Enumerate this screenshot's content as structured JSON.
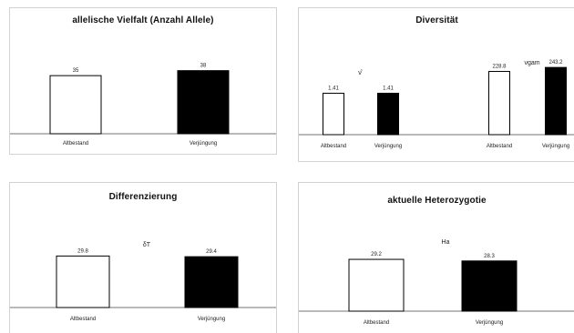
{
  "chart_data": [
    {
      "type": "bar",
      "title": "allelische Vielfalt (Anzahl Allele)",
      "categories": [
        "Altbestand",
        "Verjüngung"
      ],
      "values": [
        35,
        38
      ],
      "ylim": [
        0,
        40
      ],
      "colors": [
        "#ffffff",
        "#000000"
      ],
      "grid": false
    },
    {
      "type": "bar",
      "title": "Diversität",
      "groups": [
        {
          "symbol": "ν̂",
          "categories": [
            "Altbestand",
            "Verjüngung"
          ],
          "values": [
            1.41,
            1.41
          ],
          "ylim": [
            0,
            3.5
          ]
        },
        {
          "symbol": "νgam",
          "categories": [
            "Altbestand",
            "Verjüngung"
          ],
          "values": [
            228.8,
            243.2
          ],
          "ylim": [
            0,
            270
          ]
        }
      ],
      "colors": [
        "#ffffff",
        "#000000"
      ],
      "grid": false
    },
    {
      "type": "bar",
      "title": "Differenzierung",
      "symbol": "δT",
      "categories": [
        "Altbestand",
        "Verjüngung"
      ],
      "values": [
        29.8,
        29.4
      ],
      "ylim": [
        0,
        40
      ],
      "colors": [
        "#ffffff",
        "#000000"
      ],
      "grid": false
    },
    {
      "type": "bar",
      "title": "aktuelle Heterozygotie",
      "symbol": "Ha",
      "categories": [
        "Altbestand",
        "Verjüngung"
      ],
      "values": [
        29.2,
        28.3
      ],
      "ylim": [
        0,
        40
      ],
      "colors": [
        "#ffffff",
        "#000000"
      ],
      "grid": false
    }
  ]
}
